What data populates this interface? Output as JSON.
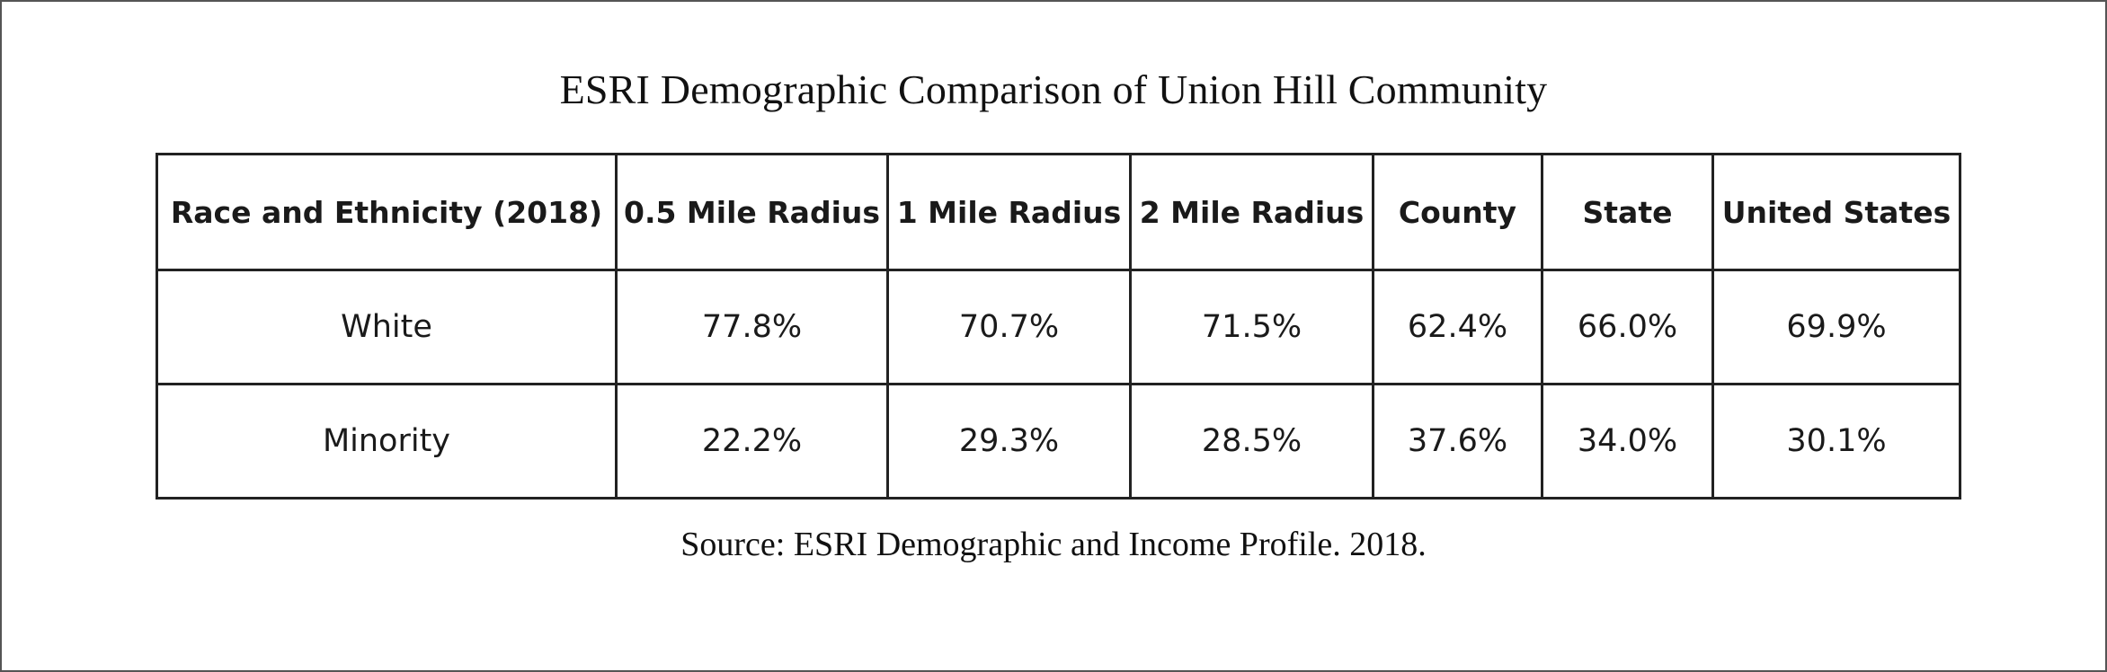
{
  "document": {
    "title": "ESRI Demographic Comparison of Union Hill Community",
    "source": "Source: ESRI Demographic and Income Profile. 2018."
  },
  "table": {
    "headers": [
      "Race and Ethnicity (2018)",
      "0.5 Mile Radius",
      "1 Mile Radius",
      "2 Mile Radius",
      "County",
      "State",
      "United States"
    ],
    "rows": [
      [
        "White",
        "77.8%",
        "70.7%",
        "71.5%",
        "62.4%",
        "66.0%",
        "69.9%"
      ],
      [
        "Minority",
        "22.2%",
        "29.3%",
        "28.5%",
        "37.6%",
        "34.0%",
        "30.1%"
      ]
    ]
  }
}
